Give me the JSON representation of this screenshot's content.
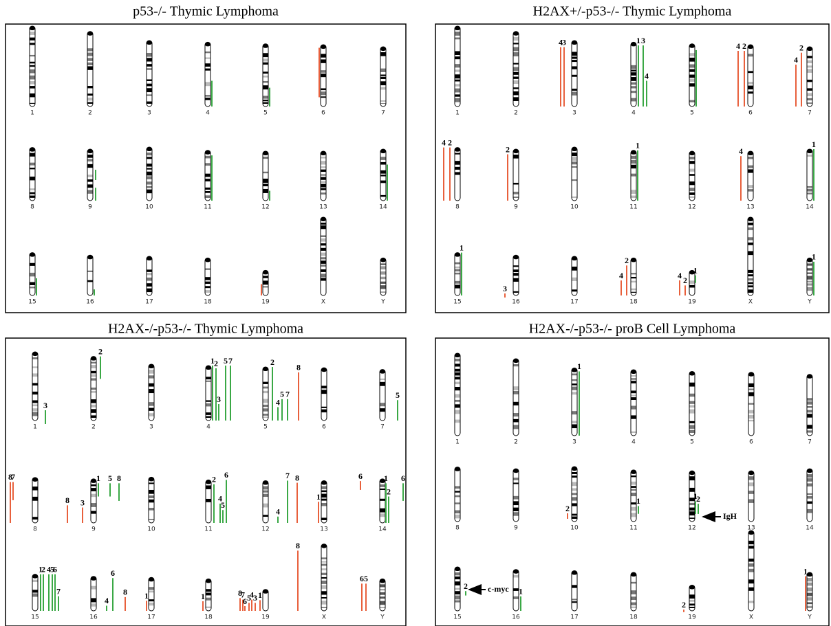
{
  "panels": [
    {
      "title": "p53-/- Thymic Lymphoma",
      "chromosomes": [
        "1",
        "2",
        "3",
        "4",
        "5",
        "6",
        "7",
        "8",
        "9",
        "10",
        "11",
        "12",
        "13",
        "14",
        "15",
        "16",
        "17",
        "18",
        "19",
        "X",
        "Y"
      ],
      "marks": [
        {
          "color": "#3aa845"
        },
        {
          "color": "#3aa845"
        },
        {
          "color": "#e8603c"
        },
        {
          "color": "#3aa845"
        },
        {
          "color": "#3aa845"
        },
        {
          "color": "#3aa845"
        },
        {
          "color": "#3aa845"
        },
        {
          "color": "#3aa845"
        },
        {
          "color": "#3aa845"
        },
        {
          "color": "#3aa845"
        },
        {
          "color": "#e8603c"
        }
      ]
    },
    {
      "title": "H2AX+/-p53-/- Thymic Lymphoma",
      "chromosomes": [
        "1",
        "2",
        "3",
        "4",
        "5",
        "6",
        "7",
        "8",
        "9",
        "10",
        "11",
        "12",
        "13",
        "14",
        "15",
        "16",
        "17",
        "18",
        "19",
        "X",
        "Y"
      ],
      "marks": [
        {
          "color": "#e8603c",
          "label": "4"
        },
        {
          "color": "#e8603c",
          "label": "3"
        },
        {
          "color": "#3aa845",
          "label": "1"
        },
        {
          "color": "#3aa845",
          "label": "3"
        },
        {
          "color": "#3aa845",
          "label": "4"
        },
        {
          "color": "#3aa845"
        },
        {
          "color": "#e8603c",
          "label": "4"
        },
        {
          "color": "#e8603c",
          "label": "2"
        },
        {
          "color": "#e8603c",
          "label": "4"
        },
        {
          "color": "#e8603c",
          "label": "2"
        },
        {
          "color": "#e8603c",
          "label": "4"
        },
        {
          "color": "#e8603c",
          "label": "2"
        },
        {
          "color": "#e8603c",
          "label": "2"
        },
        {
          "color": "#3aa845",
          "label": "1"
        },
        {
          "color": "#e8603c",
          "label": "4"
        },
        {
          "color": "#3aa845",
          "label": "1"
        },
        {
          "color": "#3aa845",
          "label": "1"
        },
        {
          "color": "#e8603c",
          "label": "3"
        },
        {
          "color": "#e8603c",
          "label": "4"
        },
        {
          "color": "#e8603c",
          "label": "2"
        },
        {
          "color": "#e8603c",
          "label": "4"
        },
        {
          "color": "#e8603c",
          "label": "2"
        },
        {
          "color": "#3aa845",
          "label": "1"
        },
        {
          "color": "#3aa845",
          "label": "1"
        }
      ]
    },
    {
      "title": "H2AX-/-p53-/- Thymic Lymphoma",
      "chromosomes": [
        "1",
        "2",
        "3",
        "4",
        "5",
        "6",
        "7",
        "8",
        "9",
        "10",
        "11",
        "12",
        "13",
        "14",
        "15",
        "16",
        "17",
        "18",
        "19",
        "X",
        "Y"
      ],
      "marks": [
        {
          "color": "#3aa845",
          "label": "3"
        },
        {
          "color": "#3aa845",
          "label": "2"
        },
        {
          "color": "#3aa845",
          "label": "1"
        },
        {
          "color": "#3aa845",
          "label": "2"
        },
        {
          "color": "#3aa845",
          "label": "3"
        },
        {
          "color": "#3aa845",
          "label": "5"
        },
        {
          "color": "#3aa845",
          "label": "7"
        },
        {
          "color": "#3aa845",
          "label": "2"
        },
        {
          "color": "#3aa845",
          "label": "4"
        },
        {
          "color": "#3aa845",
          "label": "5"
        },
        {
          "color": "#3aa845",
          "label": "7"
        },
        {
          "color": "#e8603c",
          "label": "8"
        },
        {
          "color": "#3aa845",
          "label": "5"
        },
        {
          "color": "#e8603c",
          "label": "8"
        },
        {
          "color": "#e8603c",
          "label": "7"
        },
        {
          "color": "#e8603c",
          "label": "8"
        },
        {
          "color": "#e8603c",
          "label": "3"
        },
        {
          "color": "#3aa845",
          "label": "1"
        },
        {
          "color": "#3aa845",
          "label": "5"
        },
        {
          "color": "#3aa845",
          "label": "8"
        },
        {
          "color": "#3aa845",
          "label": "2"
        },
        {
          "color": "#3aa845",
          "label": "4"
        },
        {
          "color": "#3aa845",
          "label": "5"
        },
        {
          "color": "#3aa845",
          "label": "6"
        },
        {
          "color": "#3aa845",
          "label": "4"
        },
        {
          "color": "#3aa845",
          "label": "7"
        },
        {
          "color": "#e8603c",
          "label": "8"
        },
        {
          "color": "#e8603c",
          "label": "1"
        },
        {
          "color": "#e8603c",
          "label": "6"
        },
        {
          "color": "#3aa845",
          "label": "1"
        },
        {
          "color": "#3aa845",
          "label": "2"
        },
        {
          "color": "#3aa845",
          "label": "6"
        },
        {
          "color": "#3aa845",
          "label": "1"
        },
        {
          "color": "#3aa845",
          "label": "2"
        },
        {
          "color": "#3aa845",
          "label": "4"
        },
        {
          "color": "#3aa845",
          "label": "5"
        },
        {
          "color": "#3aa845",
          "label": "6"
        },
        {
          "color": "#3aa845",
          "label": "7"
        },
        {
          "color": "#3aa845",
          "label": "4"
        },
        {
          "color": "#3aa845",
          "label": "6"
        },
        {
          "color": "#e8603c",
          "label": "8"
        },
        {
          "color": "#e8603c",
          "label": "1"
        },
        {
          "color": "#e8603c",
          "label": "1"
        },
        {
          "color": "#e8603c",
          "label": "8"
        },
        {
          "color": "#e8603c",
          "label": "7"
        },
        {
          "color": "#e8603c",
          "label": "6"
        },
        {
          "color": "#e8603c",
          "label": "5"
        },
        {
          "color": "#e8603c",
          "label": "4"
        },
        {
          "color": "#e8603c",
          "label": "3"
        },
        {
          "color": "#e8603c",
          "label": "1"
        },
        {
          "color": "#e8603c",
          "label": "8"
        },
        {
          "color": "#e8603c",
          "label": "6"
        },
        {
          "color": "#e8603c",
          "label": "5"
        }
      ]
    },
    {
      "title": "H2AX-/-p53-/- proB Cell Lymphoma",
      "chromosomes": [
        "1",
        "2",
        "3",
        "4",
        "5",
        "6",
        "7",
        "8",
        "9",
        "10",
        "11",
        "12",
        "13",
        "14",
        "15",
        "16",
        "17",
        "18",
        "19",
        "X",
        "Y"
      ],
      "marks": [
        {
          "color": "#3aa845",
          "label": "1"
        },
        {
          "color": "#e8603c",
          "label": "2"
        },
        {
          "color": "#3aa845",
          "label": "1"
        },
        {
          "color": "#3aa845",
          "label": "1"
        },
        {
          "color": "#3aa845",
          "label": "2"
        },
        {
          "color": "#3aa845",
          "label": "2"
        },
        {
          "color": "#3aa845",
          "label": "1"
        },
        {
          "color": "#e8603c",
          "label": "2"
        },
        {
          "color": "#e8603c",
          "label": "1"
        }
      ],
      "annotations": [
        {
          "text": "IgH"
        },
        {
          "text": "c-myc"
        }
      ]
    }
  ]
}
